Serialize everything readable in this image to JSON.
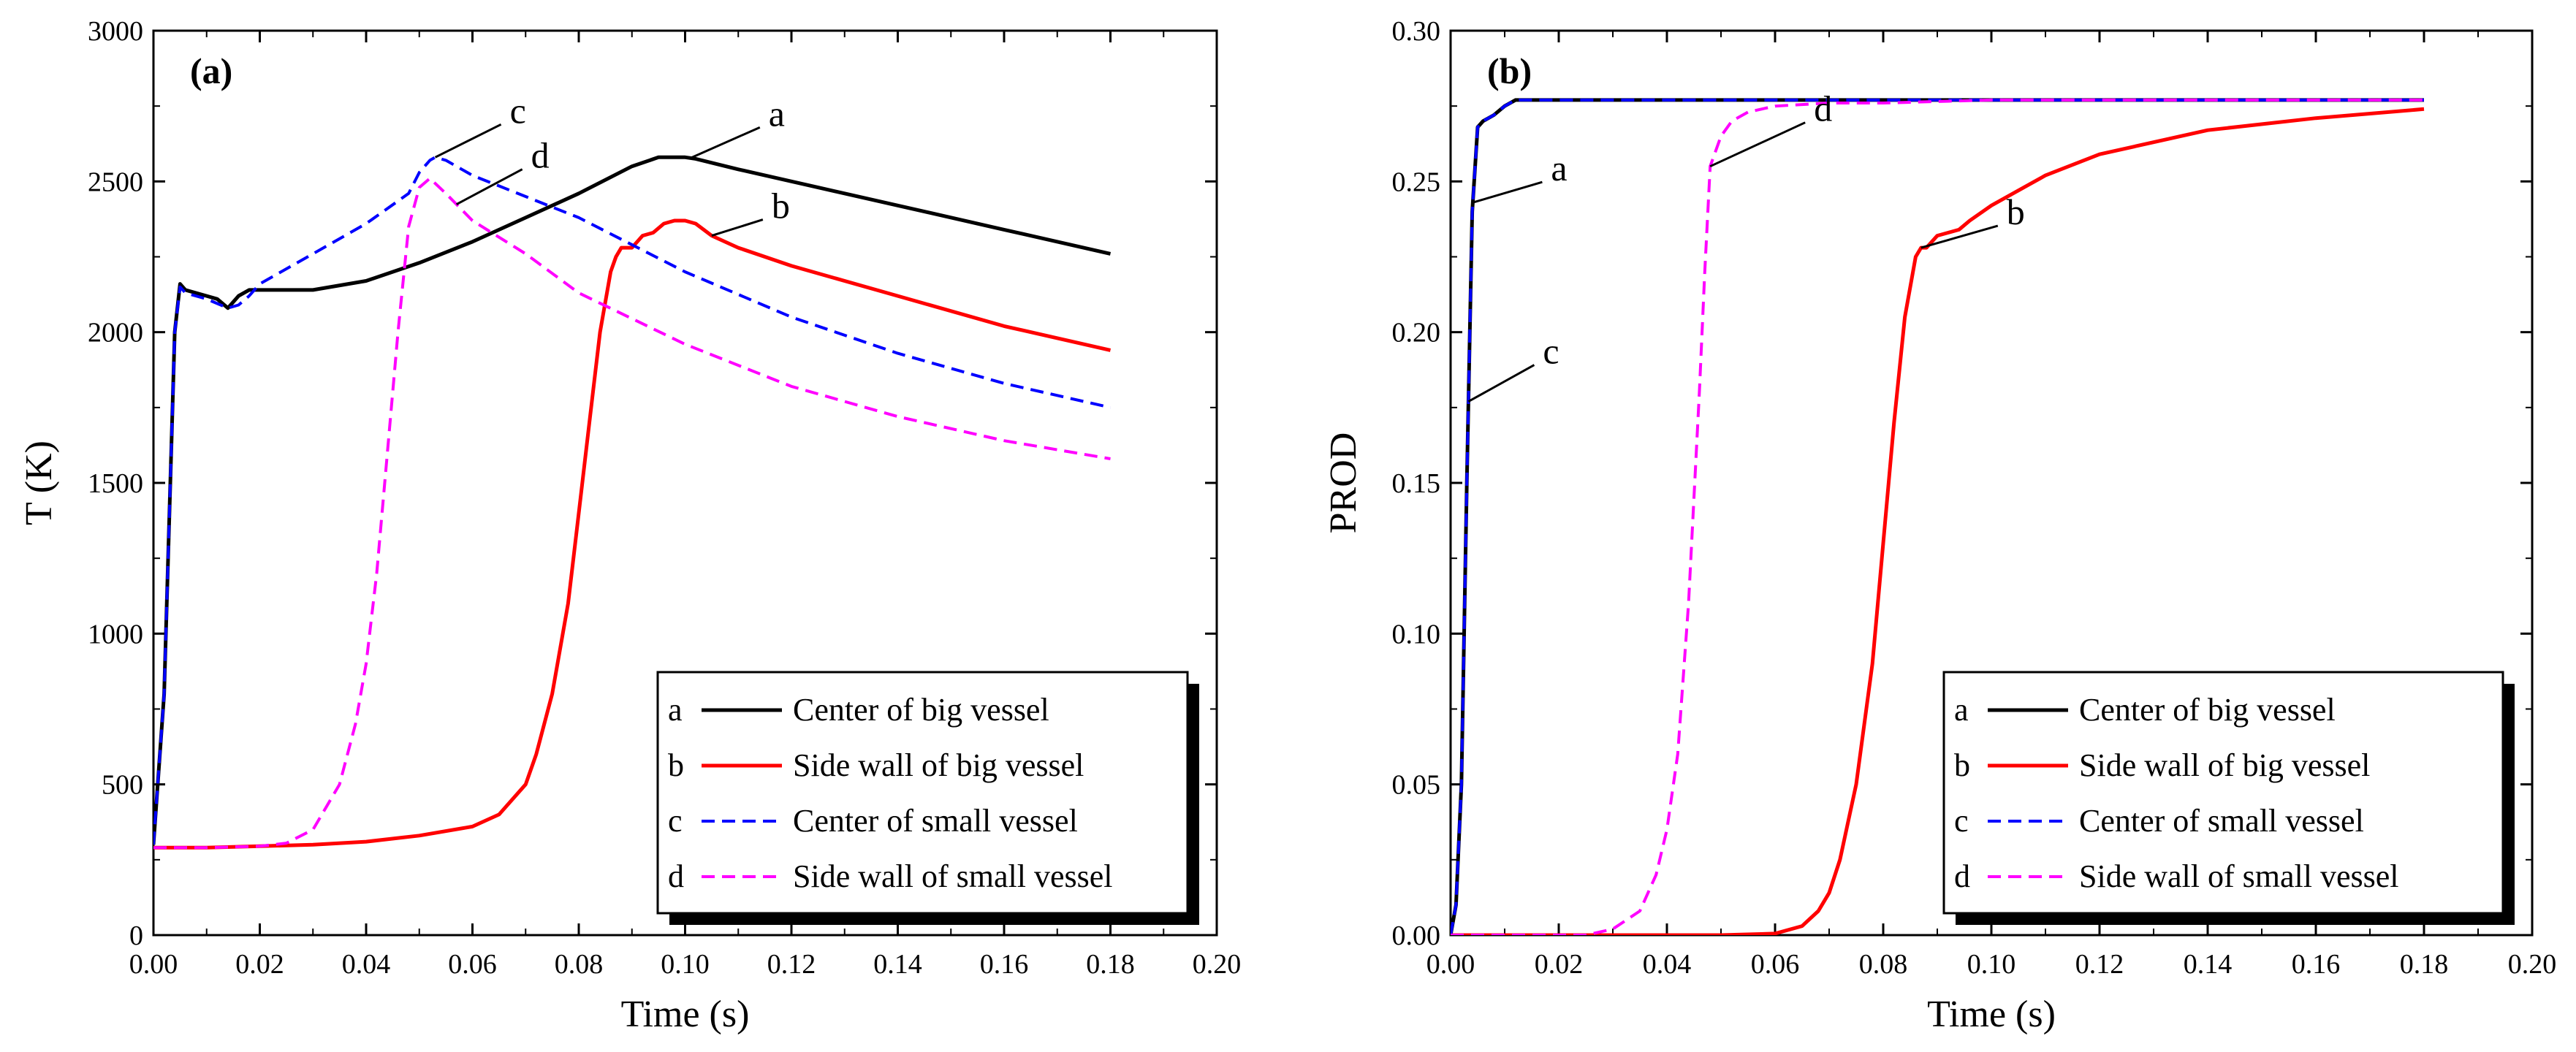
{
  "chart_data": [
    {
      "type": "line",
      "panel_label": "(a)",
      "xlabel": "Time (s)",
      "ylabel": "T (K)",
      "xlim": [
        0.0,
        0.2
      ],
      "ylim": [
        0,
        3000
      ],
      "xticks": [
        "0.00",
        "0.02",
        "0.04",
        "0.06",
        "0.08",
        "0.10",
        "0.12",
        "0.14",
        "0.16",
        "0.18",
        "0.20"
      ],
      "yticks": [
        "0",
        "500",
        "1000",
        "1500",
        "2000",
        "2500",
        "3000"
      ],
      "legend_position": "lower-right",
      "series": [
        {
          "key": "a",
          "name": "Center of big vessel",
          "color": "#000000",
          "dash": "solid",
          "x": [
            0,
            0.002,
            0.004,
            0.005,
            0.006,
            0.008,
            0.01,
            0.012,
            0.014,
            0.016,
            0.018,
            0.02,
            0.03,
            0.04,
            0.05,
            0.06,
            0.07,
            0.08,
            0.09,
            0.095,
            0.1,
            0.102,
            0.11,
            0.12,
            0.14,
            0.16,
            0.18
          ],
          "y": [
            300,
            800,
            2000,
            2160,
            2140,
            2130,
            2120,
            2110,
            2080,
            2120,
            2140,
            2140,
            2140,
            2170,
            2230,
            2300,
            2380,
            2460,
            2550,
            2580,
            2580,
            2575,
            2540,
            2500,
            2420,
            2340,
            2260
          ]
        },
        {
          "key": "b",
          "name": "Side wall of big vessel",
          "color": "#ff0000",
          "dash": "solid",
          "x": [
            0,
            0.01,
            0.02,
            0.03,
            0.04,
            0.05,
            0.06,
            0.065,
            0.07,
            0.072,
            0.075,
            0.078,
            0.08,
            0.082,
            0.084,
            0.086,
            0.087,
            0.088,
            0.09,
            0.092,
            0.094,
            0.096,
            0.098,
            0.1,
            0.102,
            0.105,
            0.11,
            0.12,
            0.14,
            0.16,
            0.18
          ],
          "y": [
            290,
            290,
            295,
            300,
            310,
            330,
            360,
            400,
            500,
            600,
            800,
            1100,
            1400,
            1700,
            2000,
            2200,
            2250,
            2280,
            2280,
            2320,
            2330,
            2360,
            2370,
            2370,
            2360,
            2320,
            2280,
            2220,
            2120,
            2020,
            1940
          ]
        },
        {
          "key": "c",
          "name": "Center of small vessel",
          "color": "#0000ff",
          "dash": "dashed",
          "x": [
            0,
            0.002,
            0.004,
            0.005,
            0.006,
            0.01,
            0.014,
            0.016,
            0.018,
            0.02,
            0.03,
            0.04,
            0.048,
            0.05,
            0.052,
            0.053,
            0.055,
            0.06,
            0.07,
            0.08,
            0.1,
            0.12,
            0.14,
            0.16,
            0.18
          ],
          "y": [
            300,
            800,
            2000,
            2150,
            2130,
            2110,
            2080,
            2090,
            2120,
            2160,
            2260,
            2360,
            2460,
            2530,
            2570,
            2580,
            2570,
            2520,
            2450,
            2380,
            2200,
            2050,
            1930,
            1830,
            1750
          ]
        },
        {
          "key": "d",
          "name": "Side wall of small vessel",
          "color": "#ff00ff",
          "dash": "dashed",
          "x": [
            0,
            0.01,
            0.02,
            0.025,
            0.03,
            0.035,
            0.038,
            0.04,
            0.042,
            0.044,
            0.046,
            0.048,
            0.05,
            0.052,
            0.055,
            0.06,
            0.07,
            0.08,
            0.1,
            0.12,
            0.14,
            0.16,
            0.18
          ],
          "y": [
            290,
            290,
            295,
            305,
            350,
            500,
            700,
            900,
            1200,
            1600,
            2000,
            2350,
            2480,
            2510,
            2460,
            2370,
            2260,
            2130,
            1960,
            1820,
            1720,
            1640,
            1580
          ]
        }
      ],
      "annotations": [
        {
          "text": "a",
          "series": "a",
          "x": 0.101
        },
        {
          "text": "b",
          "series": "b",
          "x": 0.105
        },
        {
          "text": "c",
          "series": "c",
          "x": 0.053
        },
        {
          "text": "d",
          "series": "d",
          "x": 0.057
        }
      ]
    },
    {
      "type": "line",
      "panel_label": "(b)",
      "xlabel": "Time (s)",
      "ylabel": "PROD",
      "xlim": [
        0.0,
        0.2
      ],
      "ylim": [
        0.0,
        0.3
      ],
      "xticks": [
        "0.00",
        "0.02",
        "0.04",
        "0.06",
        "0.08",
        "0.10",
        "0.12",
        "0.14",
        "0.16",
        "0.18",
        "0.20"
      ],
      "yticks": [
        "0.00",
        "0.05",
        "0.10",
        "0.15",
        "0.20",
        "0.25",
        "0.30"
      ],
      "legend_position": "lower-right",
      "series": [
        {
          "key": "a",
          "name": "Center of big vessel",
          "color": "#000000",
          "dash": "solid",
          "x": [
            0,
            0.001,
            0.002,
            0.003,
            0.004,
            0.005,
            0.006,
            0.008,
            0.01,
            0.012,
            0.02,
            0.05,
            0.1,
            0.18
          ],
          "y": [
            0,
            0.01,
            0.05,
            0.15,
            0.24,
            0.268,
            0.27,
            0.272,
            0.275,
            0.277,
            0.277,
            0.277,
            0.277,
            0.277
          ]
        },
        {
          "key": "b",
          "name": "Side wall of big vessel",
          "color": "#ff0000",
          "dash": "solid",
          "x": [
            0,
            0.05,
            0.06,
            0.065,
            0.068,
            0.07,
            0.072,
            0.075,
            0.078,
            0.08,
            0.082,
            0.084,
            0.086,
            0.087,
            0.088,
            0.09,
            0.092,
            0.094,
            0.096,
            0.1,
            0.11,
            0.12,
            0.14,
            0.16,
            0.18
          ],
          "y": [
            0,
            0,
            0.0005,
            0.003,
            0.008,
            0.014,
            0.025,
            0.05,
            0.09,
            0.13,
            0.17,
            0.205,
            0.225,
            0.228,
            0.228,
            0.232,
            0.233,
            0.234,
            0.237,
            0.242,
            0.252,
            0.259,
            0.267,
            0.271,
            0.274
          ]
        },
        {
          "key": "c",
          "name": "Center of small vessel",
          "color": "#0000ff",
          "dash": "dashed",
          "x": [
            0,
            0.001,
            0.002,
            0.003,
            0.004,
            0.005,
            0.006,
            0.008,
            0.01,
            0.012,
            0.02,
            0.05,
            0.1,
            0.18
          ],
          "y": [
            0,
            0.01,
            0.05,
            0.15,
            0.24,
            0.268,
            0.27,
            0.272,
            0.275,
            0.277,
            0.277,
            0.277,
            0.277,
            0.277
          ]
        },
        {
          "key": "d",
          "name": "Side wall of small vessel",
          "color": "#ff00ff",
          "dash": "dashed",
          "x": [
            0,
            0.025,
            0.03,
            0.035,
            0.038,
            0.04,
            0.042,
            0.044,
            0.046,
            0.047,
            0.048,
            0.05,
            0.052,
            0.055,
            0.06,
            0.07,
            0.08,
            0.1,
            0.12,
            0.14,
            0.16,
            0.18
          ],
          "y": [
            0,
            0,
            0.002,
            0.008,
            0.02,
            0.035,
            0.06,
            0.11,
            0.18,
            0.22,
            0.255,
            0.265,
            0.27,
            0.273,
            0.275,
            0.276,
            0.276,
            0.277,
            0.277,
            0.277,
            0.277,
            0.277
          ]
        }
      ],
      "annotations": [
        {
          "text": "a",
          "series": "a",
          "y": 0.243
        },
        {
          "text": "b",
          "series": "b",
          "x": 0.087
        },
        {
          "text": "c",
          "series": "c",
          "y": 0.177
        },
        {
          "text": "d",
          "series": "d",
          "x": 0.048
        }
      ]
    }
  ]
}
